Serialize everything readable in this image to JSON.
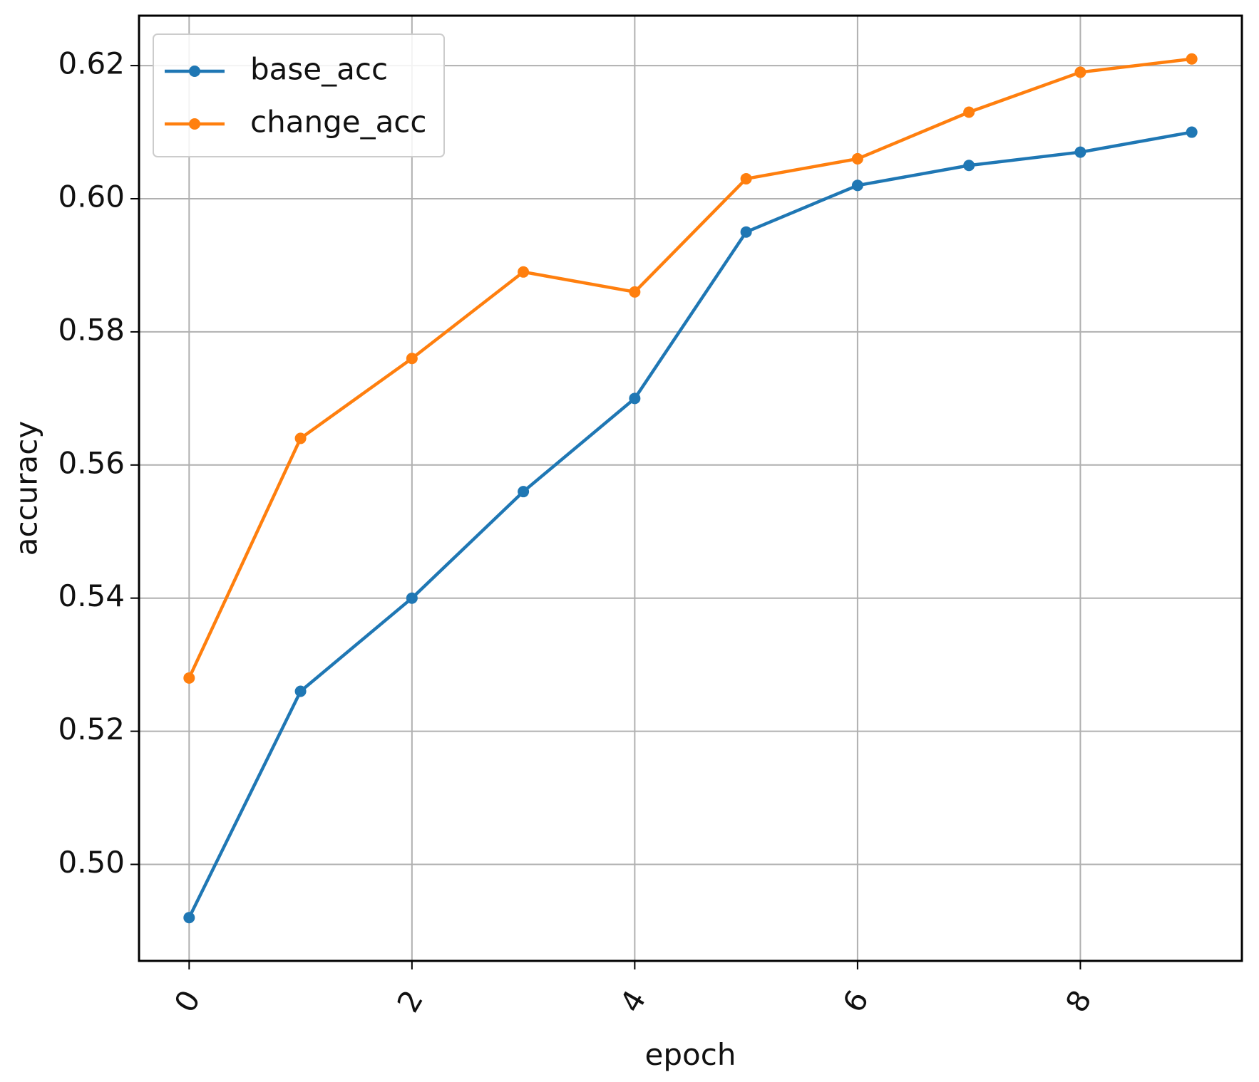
{
  "chart_data": {
    "type": "line",
    "title": "",
    "xlabel": "epoch",
    "ylabel": "accuracy",
    "x": [
      0,
      1,
      2,
      3,
      4,
      5,
      6,
      7,
      8,
      9
    ],
    "x_ticks": [
      "0",
      "2",
      "4",
      "6",
      "8"
    ],
    "y_ticks": [
      "0.50",
      "0.52",
      "0.54",
      "0.56",
      "0.58",
      "0.60",
      "0.62"
    ],
    "xlim": [
      -0.45,
      9.45
    ],
    "ylim": [
      0.4855,
      0.6275
    ],
    "grid": true,
    "legend_position": "top-left",
    "x_tick_rotation": "rotated",
    "series": [
      {
        "name": "base_acc",
        "color": "#1f77b4",
        "marker": "circle",
        "values": [
          0.492,
          0.526,
          0.54,
          0.556,
          0.57,
          0.595,
          0.602,
          0.605,
          0.607,
          0.61
        ]
      },
      {
        "name": "change_acc",
        "color": "#ff7f0e",
        "marker": "circle",
        "values": [
          0.528,
          0.564,
          0.576,
          0.589,
          0.586,
          0.603,
          0.606,
          0.613,
          0.619,
          0.621
        ]
      }
    ]
  }
}
